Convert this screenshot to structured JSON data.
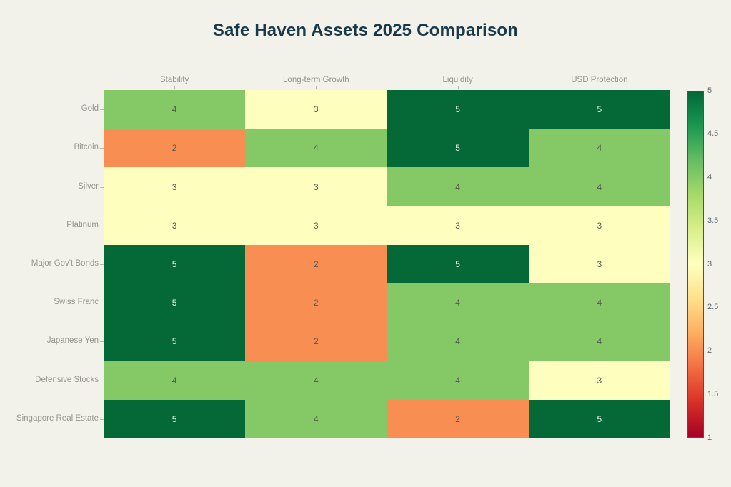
{
  "title": "Safe Haven Assets 2025 Comparison",
  "chart_data": {
    "type": "heatmap",
    "title": "Safe Haven Assets 2025 Comparison",
    "x_labels": [
      "Stability",
      "Long-term Growth",
      "Liquidity",
      "USD Protection"
    ],
    "y_labels": [
      "Gold",
      "Bitcoin",
      "Silver",
      "Platinum",
      "Major Gov't Bonds",
      "Swiss Franc",
      "Japanese Yen",
      "Defensive Stocks",
      "Singapore Real Estate"
    ],
    "values": [
      [
        4,
        3,
        5,
        5
      ],
      [
        2,
        4,
        5,
        4
      ],
      [
        3,
        3,
        4,
        4
      ],
      [
        3,
        3,
        3,
        3
      ],
      [
        5,
        2,
        5,
        3
      ],
      [
        5,
        2,
        4,
        4
      ],
      [
        5,
        2,
        4,
        4
      ],
      [
        4,
        4,
        4,
        3
      ],
      [
        5,
        4,
        2,
        5
      ]
    ],
    "zmin": 1,
    "zmax": 5,
    "colorscale_name": "RdYlGn",
    "colors": {
      "1": "#a50026",
      "2": "#f88e52",
      "3": "#feffbf",
      "4": "#85c967",
      "5": "#056937"
    },
    "text_colors": {
      "on_dark": "#edf2ea",
      "on_light": "#555b51"
    },
    "colorbar_ticks": [
      "5",
      "4.5",
      "4",
      "3.5",
      "3",
      "2.5",
      "2",
      "1.5",
      "1"
    ],
    "colorbar_gradient": [
      {
        "pos": "0%",
        "color": "#006837"
      },
      {
        "pos": "10%",
        "color": "#1a9850"
      },
      {
        "pos": "20%",
        "color": "#66bd63"
      },
      {
        "pos": "30%",
        "color": "#a6d96a"
      },
      {
        "pos": "40%",
        "color": "#d9ef8b"
      },
      {
        "pos": "50%",
        "color": "#ffffbf"
      },
      {
        "pos": "60%",
        "color": "#fee08b"
      },
      {
        "pos": "70%",
        "color": "#fdae61"
      },
      {
        "pos": "80%",
        "color": "#f46d43"
      },
      {
        "pos": "90%",
        "color": "#d73027"
      },
      {
        "pos": "100%",
        "color": "#a50026"
      }
    ],
    "legend_position": "right",
    "grid": false,
    "background_color": "#f2f1ea",
    "title_color": "#17394a",
    "axis_label_color": "#94968f"
  }
}
